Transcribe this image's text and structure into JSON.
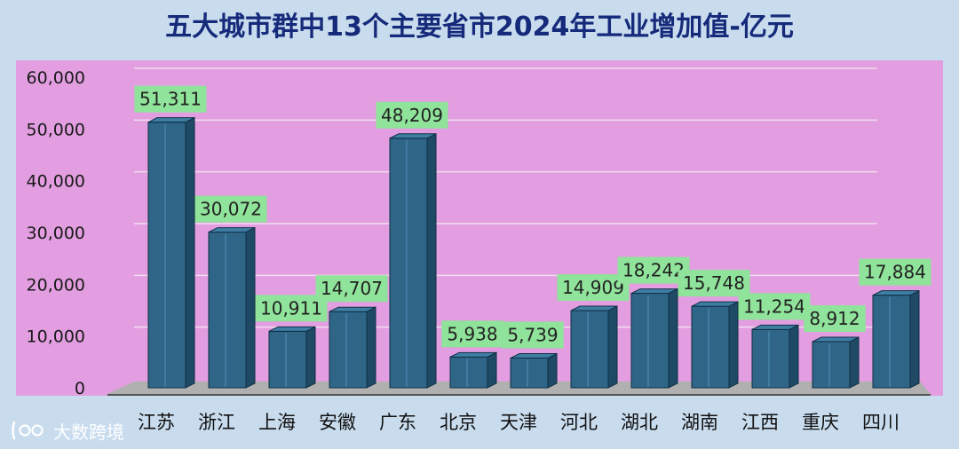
{
  "title": "五大城市群中13个主要省市2024年工业增加值-亿元",
  "watermark": {
    "text": "大数跨境",
    "logo": "bilibili-style-logo-icon"
  },
  "colors": {
    "page_bg": "#c9dcee",
    "plot_bg": "#e29ee0",
    "bar_front": "#2f6688",
    "bar_top": "#3e7ea3",
    "bar_side": "#1f4a66",
    "bar_edge": "#0f2f44",
    "label_bg": "#90e39a",
    "floor": "#b0b0b0",
    "title": "#152a7a"
  },
  "chart_data": {
    "type": "bar",
    "title": "五大城市群中13个主要省市2024年工业增加值-亿元",
    "categories": [
      "江苏",
      "浙江",
      "上海",
      "安徽",
      "广东",
      "北京",
      "天津",
      "河北",
      "湖北",
      "湖南",
      "江西",
      "重庆",
      "四川"
    ],
    "values": [
      51311,
      30072,
      10911,
      14707,
      48209,
      5938,
      5739,
      14909,
      18242,
      15748,
      11254,
      8912,
      17884
    ],
    "value_labels": [
      "51,311",
      "30,072",
      "10,911",
      "14,707",
      "48,209",
      "5,938",
      "5,739",
      "14,909",
      "18,242",
      "15,748",
      "11,254",
      "8,912",
      "17,884"
    ],
    "y_ticks": [
      "0",
      "10,000",
      "20,000",
      "30,000",
      "40,000",
      "50,000",
      "60,000"
    ],
    "ylim": [
      0,
      60000
    ],
    "xlabel": "",
    "ylabel": "",
    "grid": true,
    "legend": "none"
  }
}
